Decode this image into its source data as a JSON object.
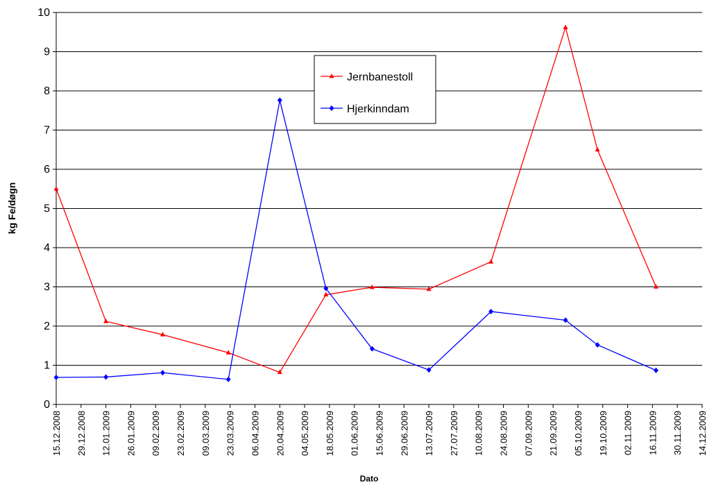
{
  "chart_data": {
    "type": "line",
    "x_label": "Dato",
    "y_label": "kg Fe/døgn",
    "xlim": [
      "15.12.2008",
      "14.12.2009"
    ],
    "xticks": [
      "15.12.2008",
      "29.12.2008",
      "12.01.2009",
      "26.01.2009",
      "09.02.2009",
      "23.02.2009",
      "09.03.2009",
      "23.03.2009",
      "06.04.2009",
      "20.04.2009",
      "04.05.2009",
      "18.05.2009",
      "01.06.2009",
      "15.06.2009",
      "29.06.2009",
      "13.07.2009",
      "27.07.2009",
      "10.08.2009",
      "24.08.2009",
      "07.09.2009",
      "21.09.2009",
      "05.10.2009",
      "19.10.2009",
      "02.11.2009",
      "16.11.2009",
      "30.11.2009",
      "14.12.2009"
    ],
    "ylim": [
      0,
      10
    ],
    "yticks": [
      0,
      1,
      2,
      3,
      4,
      5,
      6,
      7,
      8,
      9,
      10
    ],
    "grid": true,
    "x": [
      "15.12.2008",
      "12.01.2009",
      "13.02.2009",
      "22.03.2009",
      "20.04.2009",
      "16.05.2009",
      "11.06.2009",
      "13.07.2009",
      "17.08.2009",
      "28.09.2009",
      "16.10.2009",
      "18.11.2009"
    ],
    "series": [
      {
        "name": "Jernbanestoll",
        "color": "#ff0000",
        "marker": "triangle",
        "values": [
          5.5,
          2.12,
          1.78,
          1.32,
          0.82,
          2.8,
          2.99,
          2.94,
          3.64,
          9.62,
          6.5,
          3.0
        ]
      },
      {
        "name": "Hjerkinndam",
        "color": "#0000ff",
        "marker": "diamond",
        "values": [
          0.69,
          0.7,
          0.81,
          0.64,
          7.76,
          2.96,
          1.42,
          0.88,
          2.37,
          2.15,
          1.52,
          0.87
        ]
      }
    ]
  }
}
